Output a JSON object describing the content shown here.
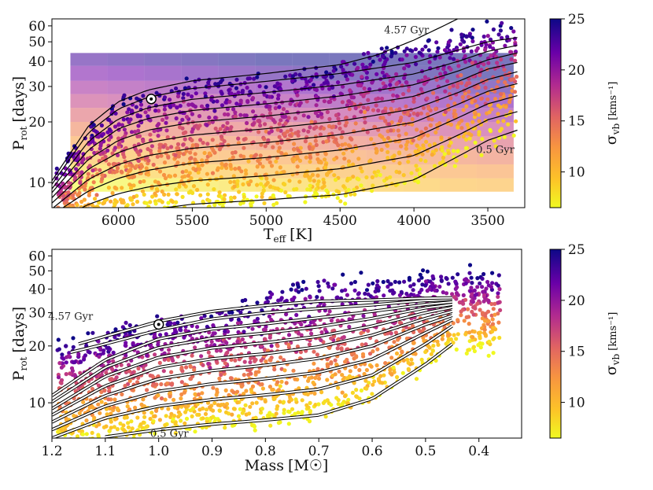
{
  "chart_data": [
    {
      "type": "scatter",
      "panel": "top",
      "xlabel_main": "T",
      "xlabel_sub": "eff",
      "xlabel_unit": "[K]",
      "ylabel_main": "P",
      "ylabel_sub": "rot",
      "ylabel_unit": "[days]",
      "x_reversed": true,
      "xlim": [
        6450,
        3250
      ],
      "ylim": [
        7.5,
        65
      ],
      "y_scale": "log",
      "xticks": [
        6000,
        5500,
        5000,
        4500,
        4000,
        3500
      ],
      "xtick_labels": [
        "6000",
        "5500",
        "5000",
        "4500",
        "4000",
        "3500"
      ],
      "yticks": [
        10,
        20,
        30,
        40,
        50,
        60
      ],
      "ytick_labels": [
        "10",
        "20",
        "30",
        "40",
        "50",
        "60"
      ],
      "sun": {
        "x": 5778,
        "y": 26
      },
      "annotations": [
        {
          "text": "4.57 Gyr",
          "x": 4050,
          "y": 55
        },
        {
          "text": "0.5 Gyr",
          "x": 3450,
          "y": 14
        }
      ],
      "isochrones": [
        {
          "age": "0.5 Gyr",
          "points": [
            [
              6450,
              5.5
            ],
            [
              6200,
              6.3
            ],
            [
              6000,
              6.9
            ],
            [
              5800,
              7.3
            ],
            [
              5500,
              7.8
            ],
            [
              5000,
              8.2
            ],
            [
              4500,
              8.7
            ],
            [
              4000,
              10.3
            ],
            [
              3700,
              13.5
            ],
            [
              3500,
              16.2
            ],
            [
              3300,
              18.2
            ]
          ]
        },
        {
          "age": "1 Gyr",
          "points": [
            [
              6450,
              6.3
            ],
            [
              6200,
              7.8
            ],
            [
              6000,
              8.8
            ],
            [
              5800,
              9.5
            ],
            [
              5500,
              10.2
            ],
            [
              5000,
              10.8
            ],
            [
              4500,
              11.7
            ],
            [
              4000,
              13.6
            ],
            [
              3700,
              17.2
            ],
            [
              3500,
              20.5
            ],
            [
              3300,
              22.5
            ]
          ]
        },
        {
          "age": "1.5 Gyr",
          "points": [
            [
              6450,
              6.9
            ],
            [
              6200,
              9.1
            ],
            [
              6000,
              10.5
            ],
            [
              5800,
              11.5
            ],
            [
              5500,
              12.5
            ],
            [
              5000,
              13.3
            ],
            [
              4500,
              14.5
            ],
            [
              4000,
              16.7
            ],
            [
              3700,
              21
            ],
            [
              3500,
              24.6
            ],
            [
              3300,
              27
            ]
          ]
        },
        {
          "age": "2 Gyr",
          "points": [
            [
              6450,
              7.4
            ],
            [
              6200,
              10.4
            ],
            [
              6000,
              12.3
            ],
            [
              5800,
              13.6
            ],
            [
              5500,
              14.8
            ],
            [
              5000,
              15.8
            ],
            [
              4500,
              17.3
            ],
            [
              4000,
              19.9
            ],
            [
              3700,
              24.5
            ],
            [
              3500,
              28.4
            ],
            [
              3300,
              31
            ]
          ]
        },
        {
          "age": "2.5 Gyr",
          "points": [
            [
              6450,
              7.9
            ],
            [
              6200,
              11.7
            ],
            [
              6000,
              14.1
            ],
            [
              5800,
              15.8
            ],
            [
              5500,
              17.2
            ],
            [
              5000,
              18.5
            ],
            [
              4500,
              20.2
            ],
            [
              4000,
              23.2
            ],
            [
              3700,
              28
            ],
            [
              3500,
              32.5
            ],
            [
              3300,
              35.5
            ]
          ]
        },
        {
          "age": "3 Gyr",
          "points": [
            [
              6450,
              8.4
            ],
            [
              6200,
              13.1
            ],
            [
              6000,
              16.2
            ],
            [
              5800,
              18.2
            ],
            [
              5500,
              19.9
            ],
            [
              5000,
              21.4
            ],
            [
              4500,
              23.4
            ],
            [
              4000,
              26.8
            ],
            [
              3700,
              31.8
            ],
            [
              3500,
              36.6
            ],
            [
              3300,
              39.5
            ]
          ]
        },
        {
          "age": "3.5 Gyr",
          "points": [
            [
              6450,
              8.9
            ],
            [
              6200,
              14.6
            ],
            [
              6000,
              18.5
            ],
            [
              5800,
              20.8
            ],
            [
              5500,
              22.8
            ],
            [
              5000,
              24.6
            ],
            [
              4500,
              26.9
            ],
            [
              4000,
              30.6
            ],
            [
              3700,
              35.8
            ],
            [
              3500,
              40.7
            ],
            [
              3300,
              44
            ]
          ]
        },
        {
          "age": "4 Gyr",
          "points": [
            [
              6450,
              9.3
            ],
            [
              6200,
              16.1
            ],
            [
              6000,
              20.7
            ],
            [
              5800,
              23.5
            ],
            [
              5500,
              25.9
            ],
            [
              5000,
              28
            ],
            [
              4500,
              30.5
            ],
            [
              4000,
              34.6
            ],
            [
              3700,
              40
            ],
            [
              3500,
              44.8
            ],
            [
              3300,
              48
            ]
          ]
        },
        {
          "age": "4.57 Gyr",
          "points": [
            [
              6450,
              9.8
            ],
            [
              6200,
              17.8
            ],
            [
              6000,
              23.2
            ],
            [
              5800,
              26.5
            ],
            [
              5500,
              29.3
            ],
            [
              5000,
              31.8
            ],
            [
              4500,
              34.8
            ],
            [
              4000,
              39.5
            ],
            [
              3700,
              45.5
            ],
            [
              3500,
              50
            ],
            [
              3300,
              52.5
            ]
          ]
        },
        {
          "age": "5 Gyr",
          "points": [
            [
              6450,
              10.2
            ],
            [
              6200,
              19.2
            ],
            [
              6000,
              25.2
            ],
            [
              5800,
              28.8
            ],
            [
              5500,
              32
            ],
            [
              5000,
              34.8
            ],
            [
              4500,
              38.5
            ],
            [
              4250,
              43
            ],
            [
              4000,
              51
            ],
            [
              3800,
              60
            ],
            [
              3650,
              68
            ]
          ]
        }
      ]
    },
    {
      "type": "scatter",
      "panel": "bottom",
      "xlabel_main": "Mass",
      "xlabel_unit": "[M☉]",
      "ylabel_main": "P",
      "ylabel_sub": "rot",
      "ylabel_unit": "[days]",
      "x_reversed": true,
      "xlim": [
        1.2,
        0.32
      ],
      "ylim": [
        6.5,
        65
      ],
      "y_scale": "log",
      "xticks": [
        1.2,
        1.1,
        1.0,
        0.9,
        0.8,
        0.7,
        0.6,
        0.5,
        0.4
      ],
      "xtick_labels": [
        "1.2",
        "1.1",
        "1.0",
        "0.9",
        "0.8",
        "0.7",
        "0.6",
        "0.5",
        "0.4"
      ],
      "yticks": [
        10,
        20,
        30,
        40,
        50,
        60
      ],
      "ytick_labels": [
        "10",
        "20",
        "30",
        "40",
        "50",
        "60"
      ],
      "sun": {
        "x": 1.0,
        "y": 26
      },
      "annotations": [
        {
          "text": "4.57 Gyr",
          "x": 1.165,
          "y": 27.5
        },
        {
          "text": "0.5 Gyr",
          "x": 0.98,
          "y": 6.6
        }
      ],
      "isochrones": [
        {
          "age": "0.5 Gyr",
          "points": [
            [
              1.1,
              6.6
            ],
            [
              1.0,
              7.2
            ],
            [
              0.9,
              7.7
            ],
            [
              0.8,
              8.1
            ],
            [
              0.7,
              8.6
            ],
            [
              0.6,
              10.5
            ],
            [
              0.5,
              16
            ],
            [
              0.45,
              20.5
            ]
          ]
        },
        {
          "age": "1 Gyr",
          "points": [
            [
              1.2,
              6.5
            ],
            [
              1.1,
              8.3
            ],
            [
              1.0,
              9.6
            ],
            [
              0.9,
              10.4
            ],
            [
              0.8,
              11
            ],
            [
              0.7,
              11.8
            ],
            [
              0.6,
              14
            ],
            [
              0.5,
              20.5
            ],
            [
              0.45,
              25.5
            ]
          ]
        },
        {
          "age": "1.5 Gyr",
          "points": [
            [
              1.2,
              7.2
            ],
            [
              1.1,
              9.6
            ],
            [
              1.0,
              11.5
            ],
            [
              0.9,
              12.6
            ],
            [
              0.8,
              13.4
            ],
            [
              0.7,
              14.5
            ],
            [
              0.6,
              17
            ],
            [
              0.5,
              23.5
            ],
            [
              0.45,
              27.5
            ]
          ]
        },
        {
          "age": "2 Gyr",
          "points": [
            [
              1.2,
              7.9
            ],
            [
              1.1,
              10.9
            ],
            [
              1.0,
              13.4
            ],
            [
              0.9,
              14.8
            ],
            [
              0.8,
              15.8
            ],
            [
              0.7,
              17.2
            ],
            [
              0.6,
              20
            ],
            [
              0.5,
              26
            ],
            [
              0.45,
              29
            ]
          ]
        },
        {
          "age": "2.5 Gyr",
          "points": [
            [
              1.2,
              8.6
            ],
            [
              1.1,
              12.3
            ],
            [
              1.0,
              15.4
            ],
            [
              0.9,
              17.1
            ],
            [
              0.8,
              18.2
            ],
            [
              0.7,
              19.8
            ],
            [
              0.6,
              22.8
            ],
            [
              0.5,
              28
            ],
            [
              0.45,
              30.5
            ]
          ]
        },
        {
          "age": "3 Gyr",
          "points": [
            [
              1.2,
              9.3
            ],
            [
              1.1,
              13.8
            ],
            [
              1.0,
              17.4
            ],
            [
              0.9,
              19.5
            ],
            [
              0.8,
              20.8
            ],
            [
              0.7,
              22.5
            ],
            [
              0.6,
              25.5
            ],
            [
              0.5,
              30
            ],
            [
              0.45,
              32
            ]
          ]
        },
        {
          "age": "3.5 Gyr",
          "points": [
            [
              1.2,
              10.1
            ],
            [
              1.1,
              15.4
            ],
            [
              1.0,
              19.6
            ],
            [
              0.9,
              22
            ],
            [
              0.8,
              23.4
            ],
            [
              0.7,
              25.3
            ],
            [
              0.6,
              28
            ],
            [
              0.5,
              31.8
            ],
            [
              0.45,
              33.2
            ]
          ]
        },
        {
          "age": "4 Gyr",
          "points": [
            [
              1.2,
              10.9
            ],
            [
              1.1,
              16.9
            ],
            [
              1.0,
              21.8
            ],
            [
              0.9,
              24.6
            ],
            [
              0.8,
              26.2
            ],
            [
              0.7,
              28.2
            ],
            [
              0.6,
              30.5
            ],
            [
              0.5,
              33.2
            ],
            [
              0.45,
              34.2
            ]
          ]
        },
        {
          "age": "4.57 Gyr",
          "points": [
            [
              1.165,
              18.5
            ],
            [
              1.1,
              20.5
            ],
            [
              1.0,
              24.3
            ],
            [
              0.9,
              27.8
            ],
            [
              0.8,
              30
            ],
            [
              0.7,
              31.6
            ],
            [
              0.6,
              33
            ],
            [
              0.5,
              34.8
            ],
            [
              0.45,
              35.3
            ]
          ]
        },
        {
          "age": "5 Gyr",
          "points": [
            [
              1.15,
              20.5
            ],
            [
              1.1,
              22.5
            ],
            [
              1.0,
              27
            ],
            [
              0.9,
              30.5
            ],
            [
              0.8,
              32.8
            ],
            [
              0.7,
              34.5
            ],
            [
              0.6,
              35
            ],
            [
              0.5,
              35.8
            ],
            [
              0.45,
              36
            ]
          ]
        }
      ]
    }
  ],
  "colorbar": {
    "label_main": "σ",
    "label_sub": "vb",
    "label_unit": "[kms⁻¹]",
    "range": [
      6.5,
      25
    ],
    "ticks": [
      10,
      15,
      20,
      25
    ],
    "tick_labels": [
      "10",
      "15",
      "20",
      "25"
    ],
    "colormap": "plasma_r"
  },
  "colors": {
    "c0": "#f0f921",
    "c1": "#fdc328",
    "c2": "#f89540",
    "c3": "#e16462",
    "c4": "#b12a90",
    "c5": "#6a00a8",
    "c6": "#0d0887",
    "sun_fill": "#ffffff",
    "sun_dot": "#000000",
    "line": "#000000"
  }
}
